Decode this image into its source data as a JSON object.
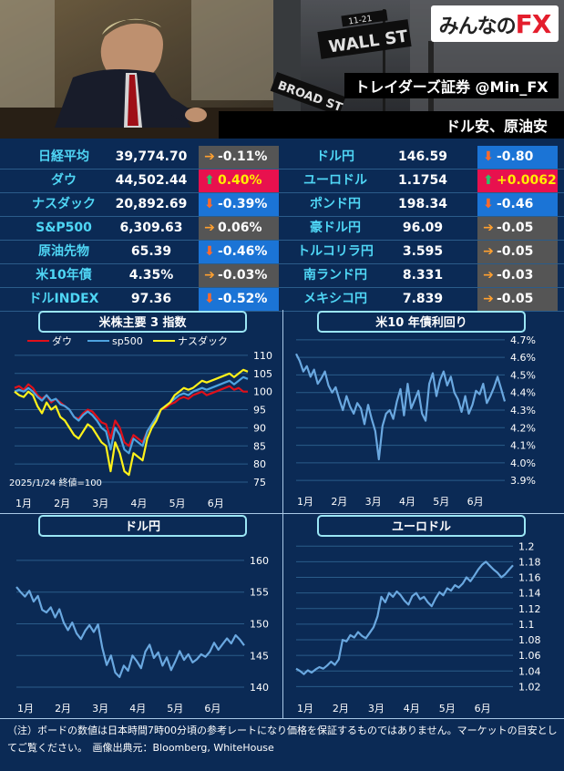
{
  "header": {
    "logo_text": "みんなのFX",
    "title": "トレイダーズ証券 @Min_FX",
    "subtitle": "ドル安、原油安",
    "sign_wall": "WALL ST",
    "sign_broad": "BROAD ST",
    "sign_num": "11-21"
  },
  "colors": {
    "up_bg": "#e8114e",
    "down_bg": "#1b74d6",
    "flat_bg": "#555555",
    "name_color": "#4fd6f5"
  },
  "quotes_left": [
    {
      "name": "日経平均",
      "value": "39,774.70",
      "change": "-0.11%",
      "dir": "flat"
    },
    {
      "name": "ダウ",
      "value": "44,502.44",
      "change": "0.40%",
      "dir": "up"
    },
    {
      "name": "ナスダック",
      "value": "20,892.69",
      "change": "-0.39%",
      "dir": "down"
    },
    {
      "name": "S&P500",
      "value": "6,309.63",
      "change": "0.06%",
      "dir": "flat"
    },
    {
      "name": "原油先物",
      "value": "65.39",
      "change": "-0.46%",
      "dir": "down"
    },
    {
      "name": "米10年債",
      "value": "4.35%",
      "change": "-0.03%",
      "dir": "flat"
    },
    {
      "name": "ドルINDEX",
      "value": "97.36",
      "change": "-0.52%",
      "dir": "down"
    }
  ],
  "quotes_right": [
    {
      "name": "ドル円",
      "value": "146.59",
      "change": "-0.80",
      "dir": "down"
    },
    {
      "name": "ユーロドル",
      "value": "1.1754",
      "change": "+0.0062",
      "dir": "up"
    },
    {
      "name": "ポンド円",
      "value": "198.34",
      "change": "-0.46",
      "dir": "down"
    },
    {
      "name": "豪ドル円",
      "value": "96.09",
      "change": "-0.05",
      "dir": "flat"
    },
    {
      "name": "トルコリラ円",
      "value": "3.595",
      "change": "-0.05",
      "dir": "flat"
    },
    {
      "name": "南ランド円",
      "value": "8.331",
      "change": "-0.03",
      "dir": "flat"
    },
    {
      "name": "メキシコ円",
      "value": "7.839",
      "change": "-0.05",
      "dir": "flat"
    }
  ],
  "chart_data": [
    {
      "type": "line",
      "title": "米株主要 3 指数",
      "note": "2025/1/24 終値=100",
      "months": [
        "1月",
        "2月",
        "3月",
        "4月",
        "5月",
        "6月"
      ],
      "yticks": [
        75,
        80,
        85,
        90,
        95,
        100,
        105,
        110
      ],
      "ylim": [
        73,
        113
      ],
      "legend_position": "top",
      "series": [
        {
          "name": "ダウ",
          "color": "#e0101a",
          "values": [
            101,
            101.5,
            100.5,
            102,
            101,
            99,
            98,
            99,
            97,
            98,
            97,
            96,
            95,
            93,
            92.5,
            94,
            95,
            94.5,
            93,
            91.5,
            91,
            87,
            92,
            90,
            86,
            85,
            88,
            87,
            86,
            89,
            91,
            93,
            95,
            95.5,
            96.5,
            97,
            98,
            98.5,
            98,
            99,
            99.5,
            100,
            99,
            99.5,
            100,
            100.5,
            101,
            101.5,
            100.5,
            101,
            100,
            100
          ]
        },
        {
          "name": "sp500",
          "color": "#4ea3e0",
          "values": [
            100,
            100.5,
            100,
            101,
            100,
            98.5,
            97.5,
            99,
            97.5,
            98,
            96.5,
            96,
            95,
            93,
            92,
            93.5,
            94.5,
            93.5,
            92,
            90,
            89,
            84,
            90,
            88,
            84,
            83,
            87,
            86,
            85,
            89,
            91,
            93,
            95,
            96,
            97,
            98,
            99,
            99.5,
            99,
            100,
            100.5,
            101,
            100.5,
            101,
            101.5,
            102,
            102.5,
            103,
            102,
            103,
            104,
            103.5
          ]
        },
        {
          "name": "ナスダック",
          "color": "#fff21a",
          "values": [
            100,
            99,
            98.5,
            100,
            99,
            96,
            94,
            97,
            95,
            96,
            93,
            92,
            90,
            88,
            87,
            89,
            91,
            90,
            88,
            86,
            85,
            78,
            86,
            83,
            78,
            77,
            83,
            82,
            81,
            87,
            90,
            92,
            95,
            96,
            97,
            99,
            100,
            101,
            100.5,
            101,
            102,
            103,
            102.5,
            103,
            103.5,
            104,
            104.5,
            105,
            104,
            105,
            106,
            105.5
          ]
        }
      ]
    },
    {
      "type": "line",
      "title": "米10 年債利回り",
      "months": [
        "1月",
        "2月",
        "3月",
        "4月",
        "5月",
        "6月"
      ],
      "ytick_labels": [
        "3.9%",
        "4.0%",
        "4.1%",
        "4.2%",
        "4.3%",
        "4.4%",
        "4.5%",
        "4.6%",
        "4.7%"
      ],
      "yticks": [
        3.9,
        4.0,
        4.1,
        4.2,
        4.3,
        4.4,
        4.5,
        4.6,
        4.7
      ],
      "ylim": [
        3.88,
        4.72
      ],
      "series": [
        {
          "name": "",
          "color": "#6aa8e0",
          "values": [
            4.62,
            4.58,
            4.52,
            4.55,
            4.49,
            4.53,
            4.45,
            4.48,
            4.52,
            4.44,
            4.4,
            4.43,
            4.36,
            4.3,
            4.38,
            4.32,
            4.28,
            4.34,
            4.31,
            4.22,
            4.33,
            4.25,
            4.18,
            4.02,
            4.21,
            4.28,
            4.3,
            4.25,
            4.35,
            4.42,
            4.27,
            4.45,
            4.31,
            4.36,
            4.41,
            4.28,
            4.24,
            4.45,
            4.51,
            4.38,
            4.47,
            4.52,
            4.44,
            4.49,
            4.4,
            4.36,
            4.29,
            4.38,
            4.28,
            4.33,
            4.41,
            4.39,
            4.45,
            4.34,
            4.38,
            4.43,
            4.49,
            4.42,
            4.35
          ]
        }
      ]
    },
    {
      "type": "line",
      "title": "ドル円",
      "months": [
        "1月",
        "2月",
        "3月",
        "4月",
        "5月",
        "6月"
      ],
      "yticks": [
        140,
        145,
        150,
        155,
        160
      ],
      "ylim": [
        139,
        162
      ],
      "series": [
        {
          "name": "",
          "color": "#6aa8e0",
          "values": [
            155.8,
            155.0,
            154.3,
            155.2,
            153.5,
            154.4,
            152.2,
            151.8,
            152.6,
            151.0,
            152.3,
            150.2,
            149.0,
            150.2,
            148.5,
            147.6,
            148.9,
            149.8,
            148.7,
            149.9,
            146.2,
            143.5,
            145.0,
            142.3,
            141.6,
            143.4,
            142.6,
            145.0,
            144.1,
            143.0,
            145.6,
            146.7,
            144.6,
            145.5,
            143.4,
            144.7,
            142.7,
            144.1,
            145.7,
            144.3,
            145.2,
            143.9,
            144.4,
            145.2,
            144.8,
            145.6,
            147.0,
            145.9,
            146.8,
            147.7,
            146.9,
            148.2,
            147.5,
            146.59
          ]
        }
      ]
    },
    {
      "type": "line",
      "title": "ユーロドル",
      "months": [
        "1月",
        "2月",
        "3月",
        "4月",
        "5月",
        "6月"
      ],
      "yticks": [
        1.02,
        1.04,
        1.06,
        1.08,
        1.1,
        1.12,
        1.14,
        1.16,
        1.18,
        1.2
      ],
      "ylim": [
        1.01,
        1.205
      ],
      "series": [
        {
          "name": "",
          "color": "#6aa8e0",
          "values": [
            1.043,
            1.04,
            1.036,
            1.041,
            1.038,
            1.042,
            1.045,
            1.043,
            1.047,
            1.052,
            1.048,
            1.055,
            1.08,
            1.078,
            1.086,
            1.083,
            1.09,
            1.085,
            1.082,
            1.089,
            1.096,
            1.11,
            1.135,
            1.128,
            1.14,
            1.135,
            1.142,
            1.137,
            1.13,
            1.125,
            1.136,
            1.14,
            1.132,
            1.135,
            1.128,
            1.123,
            1.133,
            1.141,
            1.137,
            1.146,
            1.143,
            1.15,
            1.147,
            1.152,
            1.16,
            1.155,
            1.162,
            1.17,
            1.176,
            1.18,
            1.175,
            1.17,
            1.166,
            1.16,
            1.164,
            1.17,
            1.1754
          ]
        }
      ]
    }
  ],
  "footer_note": "（注）ボードの数値は日本時間7時00分頃の参考レートになり価格を保証するものではありません。マーケットの目安としてご覧ください。　画像出典元：Bloomberg, WhiteHouse"
}
